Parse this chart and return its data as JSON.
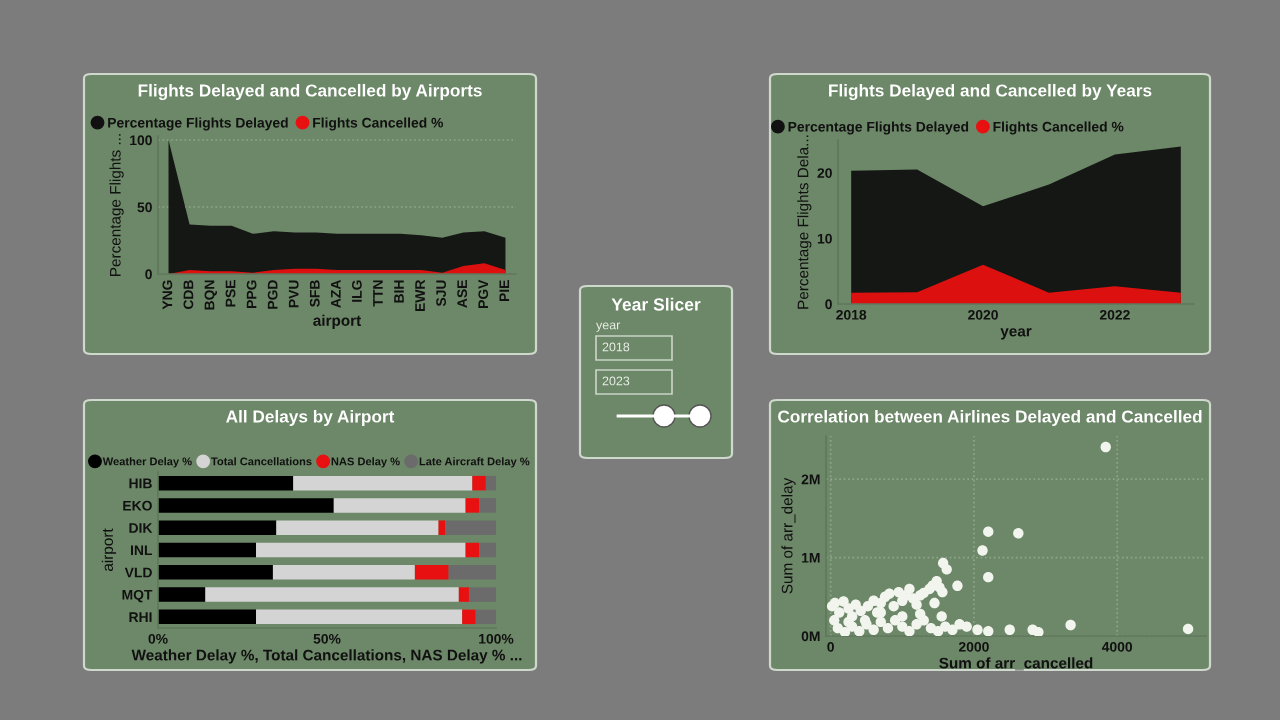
{
  "chart_data": [
    {
      "type": "area",
      "title": "Flights Delayed and Cancelled by Airports",
      "xlabel": "airport",
      "ylabel": "Percentage Flights ...",
      "categories": [
        "YNG",
        "CDB",
        "BQN",
        "PSE",
        "PPG",
        "PGD",
        "PVU",
        "SFB",
        "AZA",
        "ILG",
        "TTN",
        "BIH",
        "EWR",
        "SJU",
        "ASE",
        "PGV",
        "PIE"
      ],
      "series": [
        {
          "name": "Percentage Flights Delayed",
          "color": "#111111",
          "values": [
            100,
            37,
            36,
            36,
            30,
            32,
            31,
            31,
            30,
            30,
            30,
            30,
            29,
            27,
            31,
            32,
            27
          ]
        },
        {
          "name": "Flights Cancelled %",
          "color": "#e81010",
          "values": [
            0,
            3,
            2,
            2,
            1,
            3,
            4,
            4,
            3,
            3,
            3,
            3,
            3,
            1,
            6,
            8,
            3
          ]
        }
      ],
      "ylim": [
        0,
        103
      ],
      "yticks": [
        0,
        50,
        100
      ],
      "grid": "y",
      "legend": "top left"
    },
    {
      "type": "area",
      "title": "Flights Delayed and Cancelled by Years",
      "xlabel": "year",
      "ylabel": "Percentage Flights Dela...",
      "x": [
        2018,
        2019,
        2020,
        2021,
        2022,
        2023
      ],
      "series": [
        {
          "name": "Percentage Flights Delayed",
          "color": "#111111",
          "values": [
            20.3,
            20.5,
            14.9,
            18.2,
            22.8,
            24.0
          ]
        },
        {
          "name": "Flights Cancelled %",
          "color": "#e81010",
          "values": [
            1.7,
            1.8,
            6.0,
            1.7,
            2.7,
            1.7
          ]
        }
      ],
      "xlim": [
        2017.8,
        2023.2
      ],
      "xticks": [
        2018,
        2020,
        2022
      ],
      "ylim": [
        0,
        25
      ],
      "yticks": [
        0,
        10,
        20
      ],
      "legend": "top left"
    },
    {
      "type": "bar",
      "title": "All Delays by Airport",
      "xlabel": "Weather Delay %, Total Cancellations, NAS Delay % ...",
      "ylabel": "airport",
      "orientation": "horizontal",
      "stacked": true,
      "categories": [
        "HIB",
        "EKO",
        "DIK",
        "INL",
        "VLD",
        "MQT",
        "RHI"
      ],
      "series": [
        {
          "name": "Weather Delay %",
          "color": "#000000",
          "values": [
            40,
            52,
            35,
            29,
            34,
            14,
            29
          ]
        },
        {
          "name": "Total Cancellations",
          "color": "#d4d4d4",
          "values": [
            53,
            39,
            48,
            62,
            42,
            75,
            61
          ]
        },
        {
          "name": "NAS Delay %",
          "color": "#e81010",
          "values": [
            4,
            4,
            2,
            4,
            10,
            3,
            4
          ]
        },
        {
          "name": "Late Aircraft Delay %",
          "color": "#6b6b6b",
          "values": [
            3,
            5,
            15,
            5,
            14,
            8,
            6
          ]
        }
      ],
      "xlim": [
        0,
        100
      ],
      "xticks": [
        {
          "value": 0,
          "label": "0%"
        },
        {
          "value": 50,
          "label": "50%"
        },
        {
          "value": 100,
          "label": "100%"
        }
      ],
      "legend": "top"
    },
    {
      "type": "scatter",
      "title": "Correlation between Airlines Delayed and Cancelled",
      "xlabel": "Sum of arr_cancelled",
      "ylabel": "Sum of arr_delay",
      "marker": "circle",
      "grid": true,
      "series": [
        {
          "color": "#f2f5ee",
          "x": [
            20,
            60,
            120,
            180,
            250,
            300,
            350,
            420,
            480,
            520,
            600,
            650,
            700,
            760,
            820,
            880,
            950,
            1000,
            1050,
            1100,
            1150,
            1200,
            1250,
            1300,
            1380,
            1420,
            1480,
            1520,
            1560,
            1450,
            100,
            200,
            300,
            400,
            500,
            600,
            700,
            800,
            900,
            1000,
            1100,
            1200,
            1300,
            1400,
            1500,
            1600,
            1700,
            1800,
            50,
            250,
            700,
            1000,
            1250,
            1550,
            1570,
            1620,
            1770,
            2120,
            2200,
            2620,
            2200,
            3840,
            1900,
            2050,
            2200,
            2500,
            2820,
            2900,
            3350,
            4990
          ],
          "values": [
            380000,
            420000,
            300000,
            440000,
            350000,
            250000,
            400000,
            320000,
            200000,
            380000,
            450000,
            300000,
            420000,
            500000,
            540000,
            380000,
            560000,
            450000,
            520000,
            600000,
            480000,
            400000,
            520000,
            550000,
            600000,
            640000,
            700000,
            620000,
            560000,
            420000,
            100000,
            50000,
            120000,
            60000,
            150000,
            80000,
            180000,
            100000,
            200000,
            120000,
            60000,
            150000,
            200000,
            100000,
            60000,
            120000,
            80000,
            150000,
            200000,
            180000,
            300000,
            250000,
            280000,
            250000,
            930000,
            850000,
            640000,
            1090000,
            1330000,
            1310000,
            750000,
            2410000,
            120000,
            80000,
            60000,
            80000,
            80000,
            50000,
            140000,
            90000
          ]
        }
      ],
      "xlim": [
        -65,
        5240
      ],
      "xticks": [
        0,
        2000,
        4000
      ],
      "ylim": [
        0,
        2550000
      ],
      "yticks": [
        {
          "value": 0,
          "label": "0M"
        },
        {
          "value": 1000000,
          "label": "1M"
        },
        {
          "value": 2000000,
          "label": "2M"
        }
      ]
    },
    {
      "type": "other",
      "title": "Year Slicer",
      "annotations": [
        "year",
        "2018",
        "2023"
      ]
    }
  ]
}
